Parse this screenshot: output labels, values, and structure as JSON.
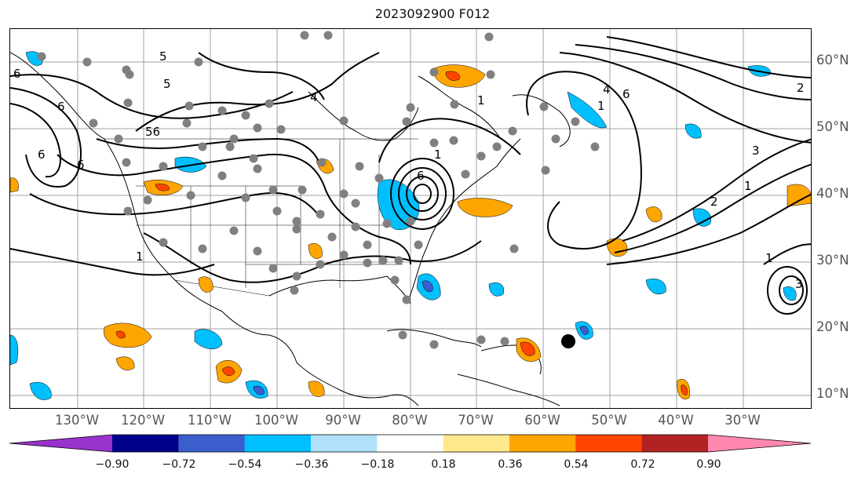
{
  "title": "2023092900 F012",
  "lon_labels": [
    "130°W",
    "120°W",
    "110°W",
    "100°W",
    "90°W",
    "80°W",
    "70°W",
    "60°W",
    "50°W",
    "40°W",
    "30°W"
  ],
  "lat_labels": [
    "60°N",
    "50°N",
    "40°N",
    "30°N",
    "20°N",
    "10°N"
  ],
  "colorbar": {
    "ticks": [
      "−0.90",
      "−0.72",
      "−0.54",
      "−0.36",
      "−0.18",
      "0.18",
      "0.36",
      "0.54",
      "0.72",
      "0.90"
    ],
    "colors": [
      "#9932cc",
      "#00008b",
      "#3a5fcd",
      "#00bfff",
      "#b0e0fa",
      "#ffffff",
      "#ffe88c",
      "#ffa500",
      "#ff4500",
      "#b22222",
      "#ff88b0"
    ]
  },
  "contour_labels": [
    "6",
    "5",
    "5",
    "4",
    "6",
    "56",
    "6",
    "6",
    "1",
    "4",
    "6",
    "1",
    "3",
    "2",
    "2",
    "1",
    "1",
    "3",
    "1",
    "1",
    "6"
  ],
  "styles": {
    "station_dot_color": "#808080",
    "grid_color": "#a0a0a0",
    "ocean_bg": "#ffffff"
  }
}
